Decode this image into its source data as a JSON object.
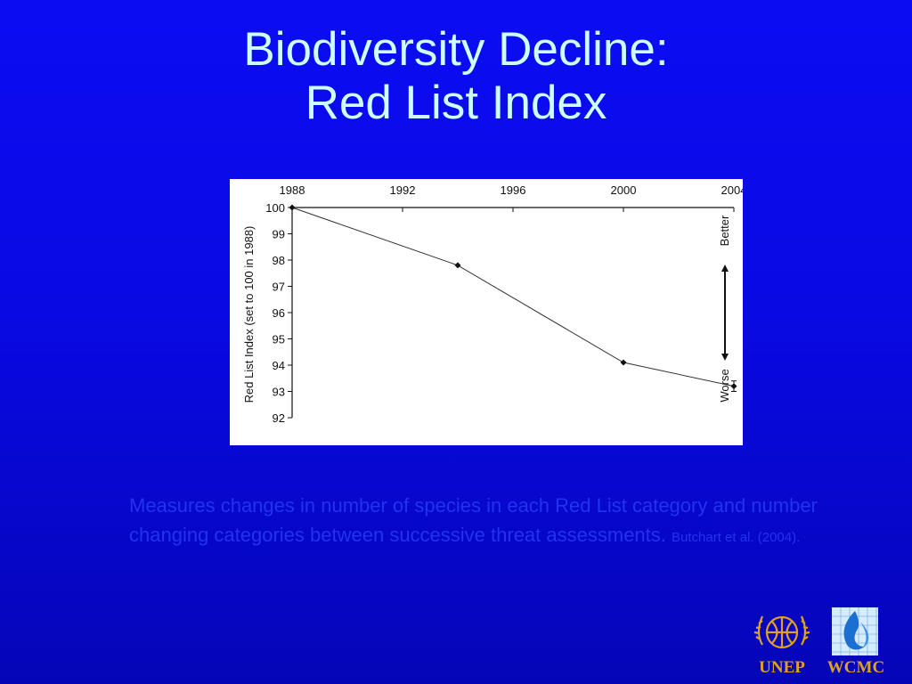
{
  "title": {
    "line1": "Biodiversity Decline:",
    "line2": "Red List Index"
  },
  "chart_data": {
    "type": "line",
    "x_position": "top",
    "x_ticks": [
      "1988",
      "1992",
      "1996",
      "2000",
      "2004"
    ],
    "y_ticks": [
      "100",
      "99",
      "98",
      "97",
      "96",
      "95",
      "94",
      "93",
      "92"
    ],
    "ylabel": "Red List Index (set to 100 in 1988)",
    "ylim": [
      92,
      100
    ],
    "xlim": [
      1988,
      2004
    ],
    "series": [
      {
        "x": [
          1988,
          1994,
          2000,
          2004
        ],
        "y": [
          100,
          97.8,
          94.1,
          93.2
        ],
        "error_bar": {
          "x": 2004,
          "low": 93.0,
          "high": 93.4
        }
      }
    ],
    "annotation": {
      "top_label": "Better",
      "bottom_label": "Worse",
      "arrow": "double-headed"
    },
    "colors": {
      "line": "#333333",
      "markers": "#111111",
      "background": "#ffffff"
    }
  },
  "caption": {
    "text": "Measures changes in number of species in each Red List category and number changing categories between successive threat assessments.",
    "citation": "Butchart et al. (2004)."
  },
  "logos": {
    "unep_text": "UNEP",
    "wcmc_text": "WCMC"
  },
  "colors": {
    "background": "#0909e4",
    "title": "#ccffff",
    "caption": "#2233ee",
    "logo_text": "#e0a020"
  }
}
